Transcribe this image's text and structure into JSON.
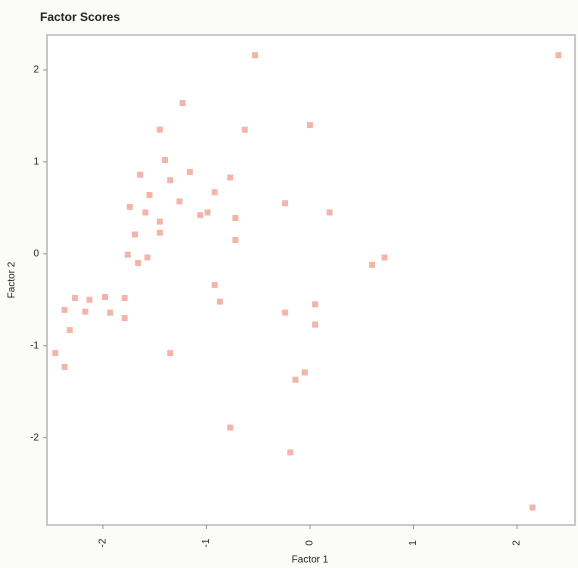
{
  "chart_data": {
    "type": "scatter",
    "title": "Factor Scores",
    "x_label": "Factor 1",
    "y_label": "Factor 2",
    "x": [
      -0.53,
      2.4,
      -1.23,
      -1.45,
      -0.63,
      0,
      -1.4,
      -1.64,
      -1.35,
      -1.16,
      -0.77,
      -1.55,
      -1.26,
      -0.92,
      -1.74,
      -1.59,
      -0.99,
      -0.72,
      -0.24,
      0.19,
      -1.45,
      -1.06,
      -1.69,
      -1.45,
      -0.72,
      -1.76,
      -1.57,
      -1.66,
      0.72,
      0.6,
      -0.92,
      -0.87,
      -2.27,
      -2.13,
      -1.98,
      -1.79,
      -2.37,
      -2.17,
      -1.93,
      -1.79,
      -0.24,
      0.05,
      0.05,
      -2.32,
      -2.46,
      -2.37,
      -1.35,
      -0.05,
      -0.14,
      -0.77,
      -0.19,
      2.15
    ],
    "values": [
      2.16,
      2.16,
      1.64,
      1.35,
      1.35,
      1.4,
      1.02,
      0.86,
      0.8,
      0.89,
      0.83,
      0.64,
      0.57,
      0.67,
      0.51,
      0.45,
      0.45,
      0.39,
      0.55,
      0.45,
      0.35,
      0.42,
      0.21,
      0.23,
      0.15,
      -0.01,
      -0.04,
      -0.1,
      -0.04,
      -0.12,
      -0.34,
      -0.52,
      -0.48,
      -0.5,
      -0.47,
      -0.48,
      -0.61,
      -0.63,
      -0.64,
      -0.7,
      -0.64,
      -0.55,
      -0.77,
      -0.83,
      -1.08,
      -1.23,
      -1.08,
      -1.29,
      -1.37,
      -1.89,
      -2.16,
      -2.76
    ],
    "color": "#f4b4a8",
    "xlim": [
      -2.54,
      2.56
    ],
    "xticks": [
      -2,
      -1,
      0,
      1,
      2
    ],
    "ylim": [
      -2.95,
      2.38
    ],
    "yticks": [
      -2,
      -1,
      0,
      1,
      2
    ]
  }
}
